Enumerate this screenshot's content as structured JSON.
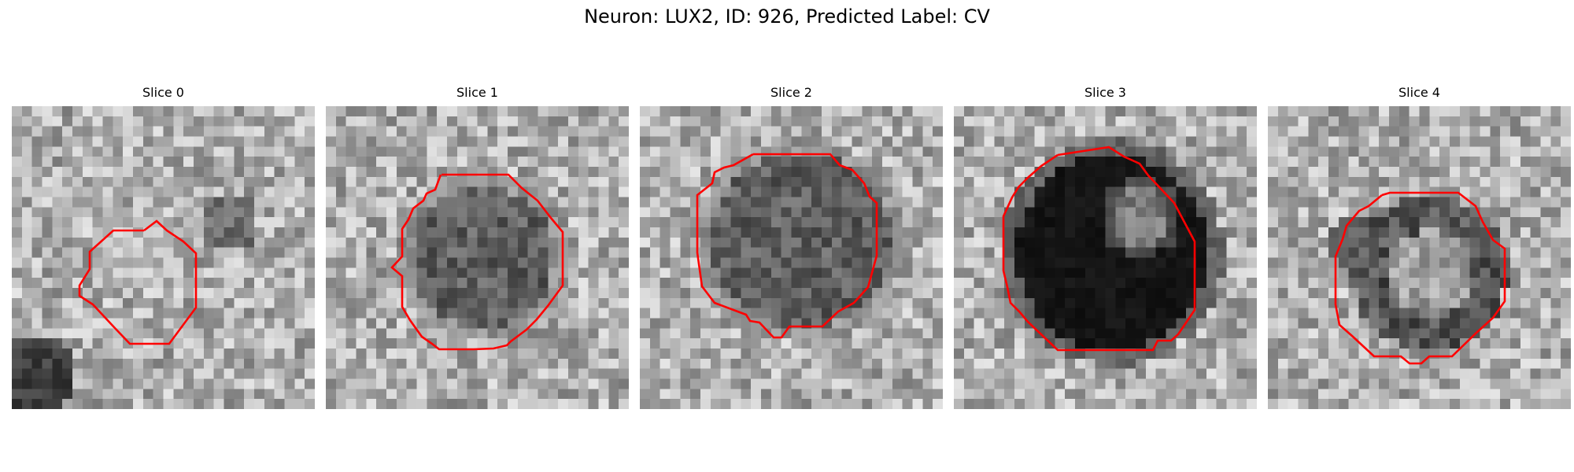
{
  "figure": {
    "title": "Neuron: LUX2, ID: 926, Predicted Label: CV"
  },
  "panels": [
    {
      "title": "Slice 0",
      "cell_tone": "bright",
      "background": "light",
      "contour_color": "#ff0000"
    },
    {
      "title": "Slice 1",
      "cell_tone": "medium-dark",
      "background": "light",
      "contour_color": "#ff0000"
    },
    {
      "title": "Slice 2",
      "cell_tone": "medium-dark",
      "background": "light",
      "contour_color": "#ff0000"
    },
    {
      "title": "Slice 3",
      "cell_tone": "very-dark",
      "background": "light",
      "contour_color": "#ff0000"
    },
    {
      "title": "Slice 4",
      "cell_tone": "ring",
      "background": "light",
      "contour_color": "#ff0000"
    }
  ]
}
